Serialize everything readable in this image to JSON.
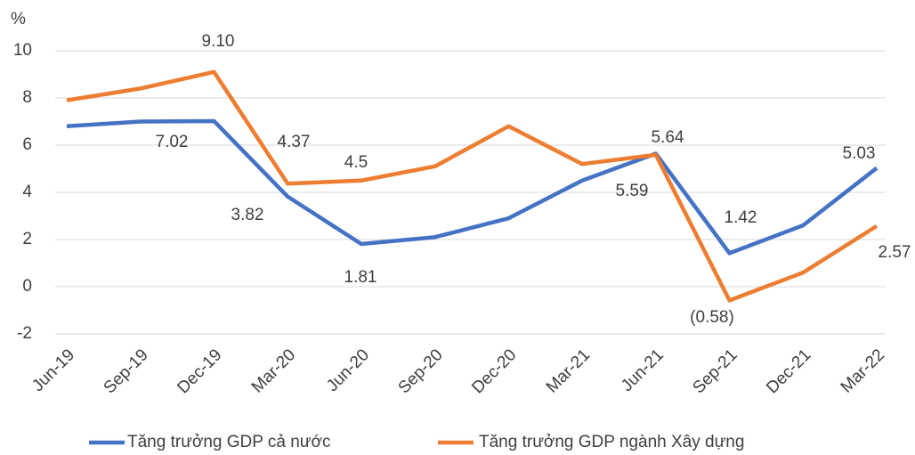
{
  "chart_data": {
    "type": "line",
    "y_label": "%",
    "categories": [
      "Jun-19",
      "Sep-19",
      "Dec-19",
      "Mar-20",
      "Jun-20",
      "Sep-20",
      "Dec-20",
      "Mar-21",
      "Jun-21",
      "Sep-21",
      "Dec-21",
      "Mar-22"
    ],
    "series": [
      {
        "name": "Tăng trưởng GDP cả nước",
        "color": "#4472c4",
        "values": [
          6.8,
          7.0,
          7.02,
          3.82,
          1.81,
          2.1,
          2.9,
          4.5,
          5.64,
          1.42,
          2.6,
          5.03
        ],
        "value_labels": [
          null,
          null,
          "7.02",
          "3.82",
          "1.81",
          null,
          null,
          null,
          "5.64",
          "1.42",
          null,
          "5.03"
        ]
      },
      {
        "name": "Tăng trưởng GDP ngành Xây dựng",
        "color": "#ed7d31",
        "values": [
          7.9,
          8.4,
          9.1,
          4.37,
          4.5,
          5.1,
          6.8,
          5.2,
          5.59,
          -0.58,
          0.6,
          2.57
        ],
        "value_labels": [
          null,
          null,
          "9.10",
          "4.37",
          "4.5",
          null,
          null,
          null,
          "5.59",
          "(0.58)",
          null,
          "2.57"
        ]
      }
    ],
    "ylim": [
      -2,
      10
    ],
    "yticks": [
      -2,
      0,
      2,
      4,
      6,
      8,
      10
    ],
    "grid": true,
    "legend": "bottom"
  }
}
